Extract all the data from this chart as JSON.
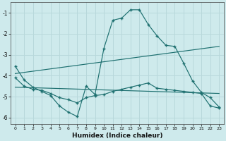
{
  "xlabel": "Humidex (Indice chaleur)",
  "bg_color": "#ceeaec",
  "grid_color": "#b8d8db",
  "line_color": "#1e7070",
  "xlim": [
    -0.5,
    23.5
  ],
  "ylim": [
    -6.3,
    -0.5
  ],
  "yticks": [
    -6,
    -5,
    -4,
    -3,
    -2,
    -1
  ],
  "xticks": [
    0,
    1,
    2,
    3,
    4,
    5,
    6,
    7,
    8,
    9,
    10,
    11,
    12,
    13,
    14,
    15,
    16,
    17,
    18,
    19,
    20,
    21,
    22,
    23
  ],
  "line1_x": [
    0,
    1,
    2,
    3,
    4,
    5,
    6,
    7,
    8,
    9,
    10,
    11,
    12,
    13,
    14,
    15,
    16,
    17,
    18,
    19,
    20,
    21,
    22,
    23
  ],
  "line1_y": [
    -3.55,
    -4.2,
    -4.55,
    -4.75,
    -4.95,
    -5.45,
    -5.75,
    -5.95,
    -4.5,
    -4.9,
    -2.7,
    -1.35,
    -1.25,
    -0.85,
    -0.85,
    -1.55,
    -2.1,
    -2.55,
    -2.6,
    -3.4,
    -4.25,
    -4.8,
    -5.05,
    -5.5
  ],
  "line2_x": [
    0,
    1,
    2,
    3,
    4,
    5,
    6,
    7,
    8,
    9,
    10,
    11,
    12,
    13,
    14,
    15,
    16,
    17,
    18,
    19,
    20,
    21,
    22,
    23
  ],
  "line2_y": [
    -4.1,
    -4.5,
    -4.65,
    -4.7,
    -4.85,
    -5.05,
    -5.15,
    -5.3,
    -5.05,
    -4.95,
    -4.9,
    -4.75,
    -4.65,
    -4.55,
    -4.45,
    -4.35,
    -4.6,
    -4.65,
    -4.7,
    -4.75,
    -4.8,
    -4.85,
    -5.45,
    -5.55
  ],
  "line3_x": [
    0,
    23
  ],
  "line3_y": [
    -3.9,
    -2.6
  ],
  "line4_x": [
    0,
    23
  ],
  "line4_y": [
    -4.55,
    -4.85
  ]
}
